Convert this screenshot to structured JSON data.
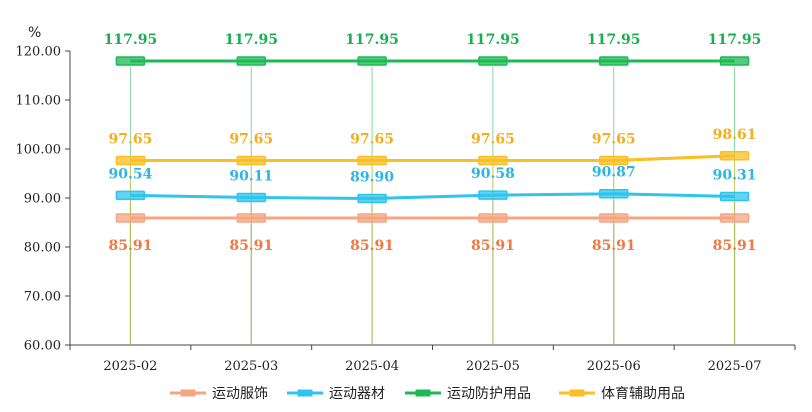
{
  "chart_data": {
    "type": "line",
    "y_unit": "%",
    "categories": [
      "2025-02",
      "2025-03",
      "2025-04",
      "2025-05",
      "2025-06",
      "2025-07"
    ],
    "ylim": [
      60,
      120
    ],
    "yticks": [
      "60.00",
      "70.00",
      "80.00",
      "90.00",
      "100.00",
      "110.00",
      "120.00"
    ],
    "grid": false,
    "legend_position": "bottom",
    "series": [
      {
        "name": "运动服饰",
        "values": [
          85.91,
          85.91,
          85.91,
          85.91,
          85.91,
          85.91
        ],
        "labels": [
          "85.91",
          "85.91",
          "85.91",
          "85.91",
          "85.91",
          "85.91"
        ],
        "color": "#f4a582",
        "label_color": "#f07841",
        "label_position": "below"
      },
      {
        "name": "运动器材",
        "values": [
          90.54,
          90.11,
          89.9,
          90.58,
          90.87,
          90.31
        ],
        "labels": [
          "90.54",
          "90.11",
          "89.90",
          "90.58",
          "90.87",
          "90.31"
        ],
        "color": "#2ec4ee",
        "label_color": "#2ab6e6",
        "label_position": "above"
      },
      {
        "name": "运动防护用品",
        "values": [
          117.95,
          117.95,
          117.95,
          117.95,
          117.95,
          117.95
        ],
        "labels": [
          "117.95",
          "117.95",
          "117.95",
          "117.95",
          "117.95",
          "117.95"
        ],
        "color": "#1db954",
        "label_color": "#18b04f",
        "label_position": "above"
      },
      {
        "name": "体育辅助用品",
        "values": [
          97.65,
          97.65,
          97.65,
          97.65,
          97.65,
          98.61
        ],
        "labels": [
          "97.65",
          "97.65",
          "97.65",
          "97.65",
          "97.65",
          "98.61"
        ],
        "color": "#fbbf24",
        "label_color": "#f2ae1c",
        "label_position": "above"
      }
    ]
  }
}
